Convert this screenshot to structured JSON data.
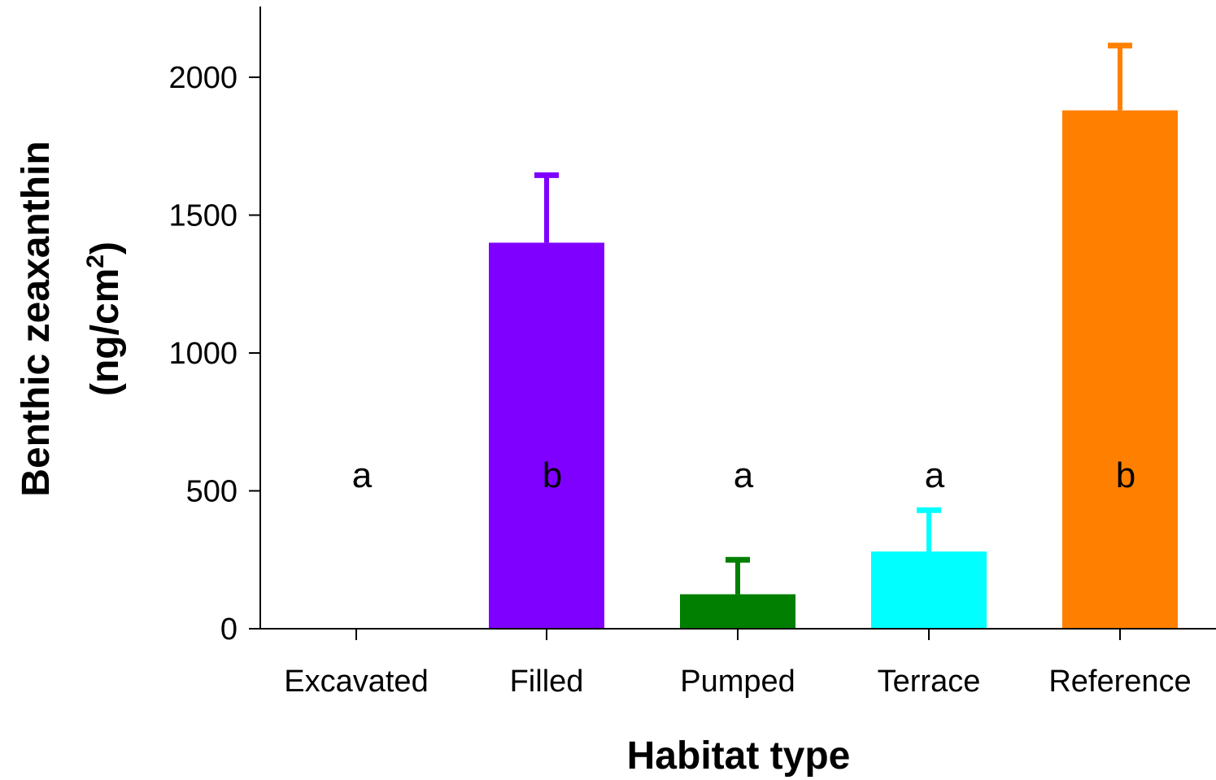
{
  "chart_data": {
    "type": "bar",
    "title": "",
    "xlabel": "Habitat type",
    "ylabel_line1": "Benthic zeaxanthin",
    "ylabel_line2_prefix": "(ng/cm",
    "ylabel_line2_sup": "2",
    "ylabel_line2_suffix": ")",
    "ylim": [
      0,
      2250
    ],
    "yticks": [
      0,
      500,
      1000,
      1500,
      2000
    ],
    "grid": false,
    "legend": "none",
    "categories": [
      "Excavated",
      "Filled",
      "Pumped",
      "Terrace",
      "Reference"
    ],
    "values": [
      0,
      1400,
      125,
      280,
      1880
    ],
    "error_upper": [
      0,
      245,
      125,
      150,
      235
    ],
    "significance_letters": [
      "a",
      "b",
      "a",
      "a",
      "b"
    ],
    "significance_level": 560,
    "colors": [
      "#000000",
      "#7f00ff",
      "#007f00",
      "#00ffff",
      "#ff8000"
    ]
  }
}
